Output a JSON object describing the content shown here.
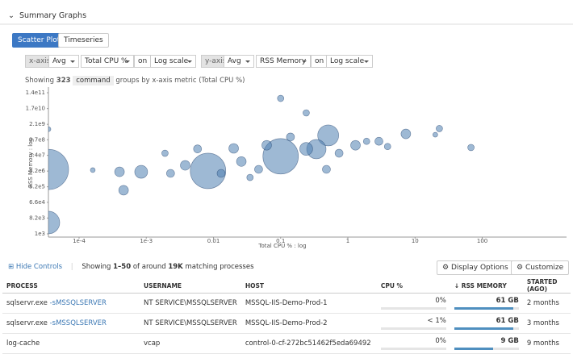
{
  "header": {
    "title": "Summary Graphs"
  },
  "tabs": [
    "Scatter Plot",
    "Timeseries"
  ],
  "controls": {
    "x_label": "x-axis",
    "x_agg": "Avg",
    "x_metric": "Total CPU %",
    "x_on": "on",
    "x_scale": "Log scale",
    "y_label": "y-axis",
    "y_agg": "Avg",
    "y_metric": "RSS Memory",
    "y_on": "on",
    "y_scale": "Log scale"
  },
  "summary": {
    "prefix": "Showing",
    "count": "323",
    "group": "command",
    "suffix": "groups by x-axis metric (Total CPU %)"
  },
  "chart_data": {
    "type": "scatter",
    "xlabel": "Total CPU % : log",
    "ylabel": "RSS Memory : log",
    "xscale": "log",
    "yscale": "log",
    "color": "#4f7fb0",
    "xlim": [
      3.5e-05,
      1700
    ],
    "xticks": [
      {
        "value": 0.0001,
        "label": "1e-4"
      },
      {
        "value": 0.001,
        "label": "1e-3"
      },
      0.01,
      0.1,
      1,
      10,
      100
    ],
    "ylim": [
      1000,
      140000000000
    ],
    "yticks": [
      {
        "value": 1000,
        "label": "1e3"
      },
      {
        "value": 8200,
        "label": "8.2e3"
      },
      {
        "value": 66000,
        "label": "6.6e4"
      },
      {
        "value": 520000,
        "label": "5.2e5"
      },
      {
        "value": 4200000,
        "label": "4.2e6"
      },
      {
        "value": 34000000,
        "label": "3.4e7"
      },
      {
        "value": 270000000,
        "label": "2.7e8"
      },
      {
        "value": 2100000000,
        "label": "2.1e9"
      },
      {
        "value": 17000000000,
        "label": "1.7e10"
      },
      {
        "value": 140000000000,
        "label": "1.4e11"
      }
    ],
    "x": [
      3.5e-05,
      3.5e-05,
      0.0083,
      0.1,
      0.51,
      0.34,
      0.00046,
      0.00084,
      0.0004,
      0.1,
      7.3,
      23,
      68,
      20,
      0.0019,
      0.02,
      0.026,
      0.0038,
      0.047,
      0.24,
      1.3,
      2.9,
      0.24,
      0.0058,
      0.0023,
      0.062,
      0.74,
      0.48,
      1.9,
      0.013,
      0.035,
      0.00016,
      3.5e-05,
      0.14,
      3.9
    ],
    "values": [
      5200000,
      4500,
      4300000,
      30000000,
      480000000,
      78000000,
      330000,
      3800000,
      3800000,
      66000000000,
      590000000,
      1200000000,
      96000000,
      530000000,
      45000000,
      86000000,
      15000000,
      9000000,
      5300000,
      80000000,
      130000000,
      220000000,
      9600000000,
      80000000,
      3100000,
      130000000,
      45000000,
      5300000,
      220000000,
      3100000,
      1800000,
      4800000,
      1100000000,
      390000000,
      110000000
    ],
    "sizes": [
      625,
      196,
      484,
      484,
      169,
      144,
      36,
      64,
      36,
      16,
      36,
      16,
      16,
      9,
      16,
      36,
      36,
      36,
      25,
      64,
      36,
      25,
      16,
      25,
      25,
      36,
      25,
      25,
      16,
      25,
      16,
      9,
      9,
      25,
      16
    ]
  },
  "footer": {
    "hide": "Hide Controls",
    "prefix": "Showing",
    "range": "1–50",
    "mid": "of around",
    "total": "19K",
    "suffix": "matching processes",
    "display": "Display Options",
    "customize": "Customize"
  },
  "table": {
    "headers": [
      "PROCESS",
      "USERNAME",
      "HOST",
      "CPU %",
      "RSS MEMORY",
      "STARTED (AGO)"
    ],
    "rows": [
      [
        "sqlservr.exe",
        "-sMSSQLSERVER",
        "NT SERVICE\\MSSQLSERVER",
        "MSSQL-IIS-Demo-Prod-1",
        "0%",
        "61 GB",
        "2 months"
      ],
      [
        "sqlservr.exe",
        "-sMSSQLSERVER",
        "NT SERVICE\\MSSQLSERVER",
        "MSSQL-IIS-Demo-Prod-2",
        "< 1%",
        "61 GB",
        "3 months"
      ],
      [
        "log-cache",
        "",
        "vcap",
        "control-0-cf-272bc51462f5eda69492",
        "0%",
        "9 GB",
        "9 months"
      ]
    ]
  }
}
